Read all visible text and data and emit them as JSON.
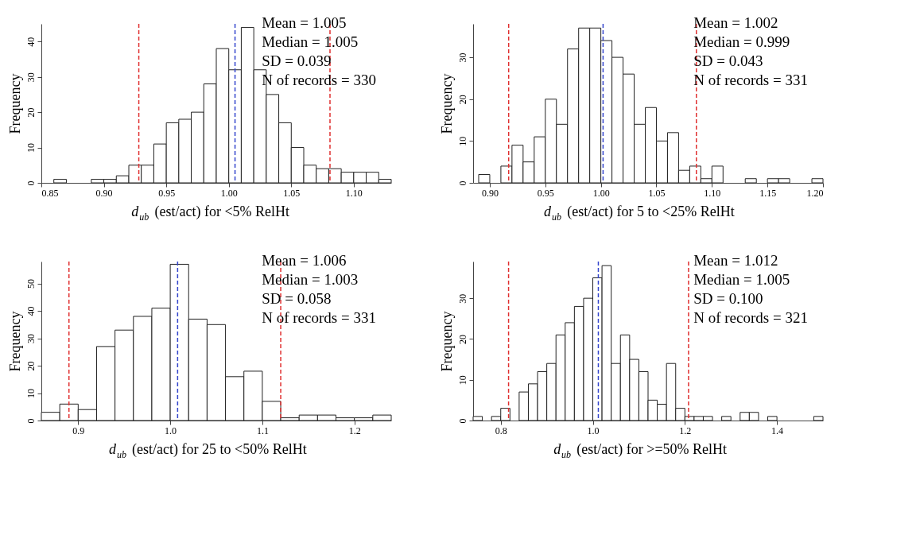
{
  "chart_data": [
    {
      "type": "histogram",
      "xlabel": "d$_{ub}$ (est/act) for <5% RelHt",
      "ylabel": "Frequency",
      "bins": [
        0.86,
        0.87,
        0.88,
        0.89,
        0.9,
        0.91,
        0.92,
        0.93,
        0.94,
        0.95,
        0.96,
        0.97,
        0.98,
        0.99,
        1.0,
        1.01,
        1.02,
        1.03,
        1.04,
        1.05,
        1.06,
        1.07,
        1.08,
        1.09,
        1.1,
        1.11,
        1.12,
        1.13
      ],
      "values": [
        1,
        0,
        0,
        1,
        1,
        2,
        5,
        5,
        11,
        17,
        18,
        20,
        28,
        38,
        32,
        44,
        32,
        25,
        17,
        10,
        5,
        4,
        4,
        3,
        3,
        3,
        1
      ],
      "color": "#ffffff",
      "xlim": [
        0.85,
        1.13
      ],
      "xticks": [
        {
          "value": 0.85,
          "label": "0.85"
        },
        {
          "value": 0.9,
          "label": "0.90"
        },
        {
          "value": 0.95,
          "label": "0.95"
        },
        {
          "value": 1.0,
          "label": "1.00"
        },
        {
          "value": 1.05,
          "label": "1.05"
        },
        {
          "value": 1.1,
          "label": "1.10"
        }
      ],
      "ylim": [
        0,
        45
      ],
      "yticks": [
        0,
        10,
        20,
        30,
        40
      ],
      "grid": false,
      "ref_lines": [
        {
          "axis": "x",
          "value": 0.928,
          "color": "#e03030",
          "line_style": "dashed"
        },
        {
          "axis": "x",
          "value": 1.081,
          "color": "#e03030",
          "line_style": "dashed"
        },
        {
          "axis": "x",
          "value": 1.005,
          "color": "#3344cc",
          "line_style": "dashed"
        }
      ],
      "annotations": [
        "Mean = 1.005",
        "Median = 1.005",
        "SD = 0.039",
        "N of records = 330"
      ]
    },
    {
      "type": "histogram",
      "xlabel": "d$_{ub}$ (est/act) for 5 to <25% RelHt",
      "ylabel": "Frequency",
      "bins": [
        0.89,
        0.9,
        0.91,
        0.92,
        0.93,
        0.94,
        0.95,
        0.96,
        0.97,
        0.98,
        0.99,
        1.0,
        1.01,
        1.02,
        1.03,
        1.04,
        1.05,
        1.06,
        1.07,
        1.08,
        1.09,
        1.1,
        1.11,
        1.12,
        1.13,
        1.14,
        1.15,
        1.16,
        1.17,
        1.18,
        1.19,
        1.2
      ],
      "values": [
        2,
        0,
        4,
        9,
        5,
        11,
        20,
        14,
        32,
        37,
        37,
        34,
        30,
        26,
        14,
        18,
        10,
        12,
        3,
        4,
        1,
        4,
        0,
        0,
        1,
        0,
        1,
        1,
        0,
        0,
        1
      ],
      "color": "#ffffff",
      "xlim": [
        0.885,
        1.2
      ],
      "xticks": [
        {
          "value": 0.9,
          "label": "0.90"
        },
        {
          "value": 0.95,
          "label": "0.95"
        },
        {
          "value": 1.0,
          "label": "1.00"
        },
        {
          "value": 1.05,
          "label": "1.05"
        },
        {
          "value": 1.1,
          "label": "1.10"
        },
        {
          "value": 1.15,
          "label": "1.15"
        },
        {
          "value": 1.2,
          "label": "1.20"
        }
      ],
      "ylim": [
        0,
        38
      ],
      "yticks": [
        0,
        10,
        20,
        30
      ],
      "grid": false,
      "ref_lines": [
        {
          "axis": "x",
          "value": 0.917,
          "color": "#e03030",
          "line_style": "dashed"
        },
        {
          "axis": "x",
          "value": 1.086,
          "color": "#e03030",
          "line_style": "dashed"
        },
        {
          "axis": "x",
          "value": 1.002,
          "color": "#3344cc",
          "line_style": "dashed"
        }
      ],
      "annotations": [
        "Mean = 1.002",
        "Median = 0.999",
        "SD = 0.043",
        "N of records = 331"
      ]
    },
    {
      "type": "histogram",
      "xlabel": "d$_{ub}$ (est/act) for 25 to <50% RelHt",
      "ylabel": "Frequency",
      "bins": [
        0.86,
        0.88,
        0.9,
        0.92,
        0.94,
        0.96,
        0.98,
        1.0,
        1.02,
        1.04,
        1.06,
        1.08,
        1.1,
        1.12,
        1.14,
        1.16,
        1.18,
        1.2,
        1.22,
        1.24
      ],
      "values": [
        3,
        6,
        4,
        27,
        33,
        38,
        41,
        57,
        37,
        35,
        16,
        18,
        7,
        1,
        2,
        2,
        1,
        1,
        2
      ],
      "color": "#ffffff",
      "xlim": [
        0.86,
        1.24
      ],
      "xticks": [
        {
          "value": 0.9,
          "label": "0.9"
        },
        {
          "value": 1.0,
          "label": "1.0"
        },
        {
          "value": 1.1,
          "label": "1.1"
        },
        {
          "value": 1.2,
          "label": "1.2"
        }
      ],
      "ylim": [
        0,
        58
      ],
      "yticks": [
        0,
        10,
        20,
        30,
        40,
        50
      ],
      "grid": false,
      "ref_lines": [
        {
          "axis": "x",
          "value": 0.89,
          "color": "#e03030",
          "line_style": "dashed"
        },
        {
          "axis": "x",
          "value": 1.12,
          "color": "#e03030",
          "line_style": "dashed"
        },
        {
          "axis": "x",
          "value": 1.008,
          "color": "#3344cc",
          "line_style": "dashed"
        }
      ],
      "annotations": [
        "Mean = 1.006",
        "Median = 1.003",
        "SD = 0.058",
        "N of records = 331"
      ]
    },
    {
      "type": "histogram",
      "xlabel": "d$_{ub}$ (est/act) for  >=50% RelHt",
      "ylabel": "Frequency",
      "bins": [
        0.74,
        0.76,
        0.78,
        0.8,
        0.82,
        0.84,
        0.86,
        0.88,
        0.9,
        0.92,
        0.94,
        0.96,
        0.98,
        1.0,
        1.02,
        1.04,
        1.06,
        1.08,
        1.1,
        1.12,
        1.14,
        1.16,
        1.18,
        1.2,
        1.22,
        1.24,
        1.26,
        1.28,
        1.3,
        1.32,
        1.34,
        1.36,
        1.38,
        1.4,
        1.42,
        1.44,
        1.46,
        1.48,
        1.5
      ],
      "values": [
        1,
        0,
        1,
        3,
        0,
        7,
        9,
        12,
        14,
        21,
        24,
        28,
        30,
        35,
        38,
        14,
        21,
        15,
        12,
        5,
        4,
        14,
        3,
        1,
        1,
        1,
        0,
        1,
        0,
        2,
        2,
        0,
        1,
        0,
        0,
        0,
        0,
        1
      ],
      "color": "#ffffff",
      "xlim": [
        0.74,
        1.5
      ],
      "xticks": [
        {
          "value": 0.8,
          "label": "0.8"
        },
        {
          "value": 1.0,
          "label": "1.0"
        },
        {
          "value": 1.2,
          "label": "1.2"
        },
        {
          "value": 1.4,
          "label": "1.4"
        }
      ],
      "ylim": [
        0,
        39
      ],
      "yticks": [
        0,
        10,
        20,
        30
      ],
      "grid": false,
      "ref_lines": [
        {
          "axis": "x",
          "value": 0.817,
          "color": "#e03030",
          "line_style": "dashed"
        },
        {
          "axis": "x",
          "value": 1.208,
          "color": "#e03030",
          "line_style": "dashed"
        },
        {
          "axis": "x",
          "value": 1.012,
          "color": "#3344cc",
          "line_style": "dashed"
        }
      ],
      "annotations": [
        "Mean = 1.012",
        "Median = 1.005",
        "SD = 0.100",
        "N of records = 321"
      ]
    }
  ]
}
